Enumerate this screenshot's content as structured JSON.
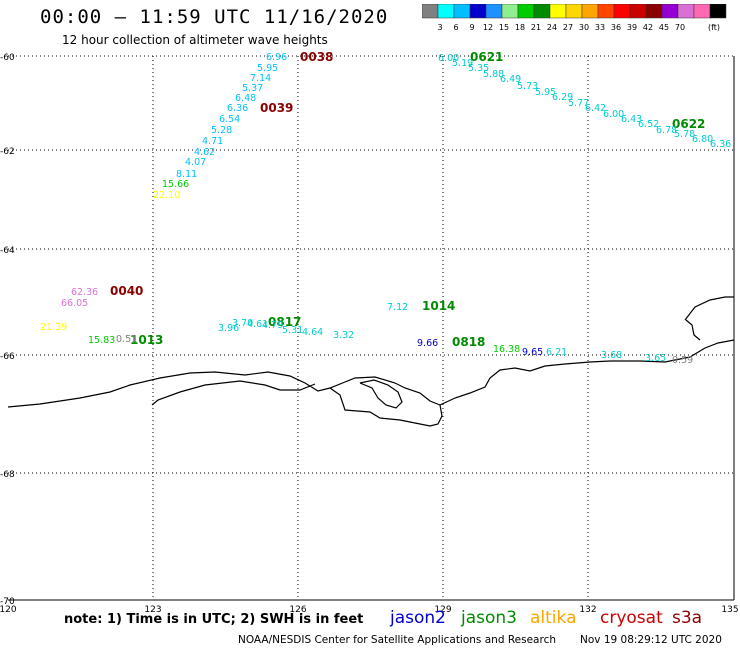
{
  "header": {
    "title": "00:00 – 11:59 UTC 11/16/2020",
    "subtitle": "12 hour collection of altimeter wave heights"
  },
  "scale": {
    "unit": "(ft)",
    "colors": [
      "#808080",
      "#00ffff",
      "#00bfff",
      "#0000cd",
      "#1e90ff",
      "#90ee90",
      "#00cd00",
      "#008b00",
      "#ffff00",
      "#ffd700",
      "#ffa500",
      "#ff4500",
      "#ff0000",
      "#cd0000",
      "#8b0000",
      "#9400d3",
      "#da70d6",
      "#ff69b4",
      "#000000"
    ],
    "labels": [
      "3",
      "6",
      "9",
      "12",
      "15",
      "18",
      "21",
      "24",
      "27",
      "30",
      "33",
      "36",
      "39",
      "42",
      "45",
      "70"
    ]
  },
  "axes": {
    "lat_labels": [
      "-60",
      "-62",
      "-64",
      "-66",
      "-68",
      "-70"
    ],
    "lon_labels": [
      "120",
      "123",
      "126",
      "129",
      "132",
      "135"
    ]
  },
  "passes": [
    {
      "label": "0038",
      "color": "#8b0000"
    },
    {
      "label": "0039",
      "color": "#8b0000"
    },
    {
      "label": "0040",
      "color": "#8b0000"
    },
    {
      "label": "0621",
      "color": "#008b00"
    },
    {
      "label": "0622",
      "color": "#008b00"
    },
    {
      "label": "0817",
      "color": "#008b00"
    },
    {
      "label": "0818",
      "color": "#008b00"
    },
    {
      "label": "1013",
      "color": "#008b00"
    },
    {
      "label": "1014",
      "color": "#008b00"
    }
  ],
  "track_values": [
    {
      "text": "6.96",
      "color": "#00bfff"
    },
    {
      "text": "5.95",
      "color": "#00bfff"
    },
    {
      "text": "7.14",
      "color": "#00bfff"
    },
    {
      "text": "5.37",
      "color": "#00bfff"
    },
    {
      "text": "6.48",
      "color": "#00bfff"
    },
    {
      "text": "6.36",
      "color": "#00bfff"
    },
    {
      "text": "6.54",
      "color": "#00bfff"
    },
    {
      "text": "5.28",
      "color": "#00bfff"
    },
    {
      "text": "4.71",
      "color": "#00bfff"
    },
    {
      "text": "4.62",
      "color": "#00bfff"
    },
    {
      "text": "4.07",
      "color": "#00bfff"
    },
    {
      "text": "8.11",
      "color": "#00bfff"
    },
    {
      "text": "15.66",
      "color": "#00cd00"
    },
    {
      "text": "22.10",
      "color": "#ffff00"
    },
    {
      "text": "6.00",
      "color": "#00cdcd"
    },
    {
      "text": "5.19",
      "color": "#00cdcd"
    },
    {
      "text": "5.35",
      "color": "#00cdcd"
    },
    {
      "text": "5.88",
      "color": "#00cdcd"
    },
    {
      "text": "6.49",
      "color": "#00cdcd"
    },
    {
      "text": "5.73",
      "color": "#00cdcd"
    },
    {
      "text": "5.95",
      "color": "#00cdcd"
    },
    {
      "text": "6.29",
      "color": "#00cdcd"
    },
    {
      "text": "5.77",
      "color": "#00cdcd"
    },
    {
      "text": "6.42",
      "color": "#00cdcd"
    },
    {
      "text": "6.00",
      "color": "#00cdcd"
    },
    {
      "text": "6.43",
      "color": "#00cdcd"
    },
    {
      "text": "6.52",
      "color": "#00cdcd"
    },
    {
      "text": "6.78",
      "color": "#00cdcd"
    },
    {
      "text": "5.78",
      "color": "#00cdcd"
    },
    {
      "text": "6.80",
      "color": "#00cdcd"
    },
    {
      "text": "6.36",
      "color": "#00cdcd"
    },
    {
      "text": "62.36",
      "color": "#da70d6"
    },
    {
      "text": "66.05",
      "color": "#da70d6"
    },
    {
      "text": "21.39",
      "color": "#ffff00"
    },
    {
      "text": "15.83",
      "color": "#00cd00"
    },
    {
      "text": "0.51",
      "color": "#808080"
    },
    {
      "text": "3.96",
      "color": "#00cdcd"
    },
    {
      "text": "3.70",
      "color": "#00cdcd"
    },
    {
      "text": "4.61",
      "color": "#00cdcd"
    },
    {
      "text": "4.79",
      "color": "#00cdcd"
    },
    {
      "text": "5.31",
      "color": "#00cdcd"
    },
    {
      "text": "4.64",
      "color": "#00cdcd"
    },
    {
      "text": "3.32",
      "color": "#00cdcd"
    },
    {
      "text": "7.12",
      "color": "#00cdcd"
    },
    {
      "text": "9.66",
      "color": "#0000cd"
    },
    {
      "text": "16.38",
      "color": "#00cd00"
    },
    {
      "text": "9.65",
      "color": "#0000cd"
    },
    {
      "text": "6.21",
      "color": "#00cdcd"
    },
    {
      "text": "3.68",
      "color": "#00cdcd"
    },
    {
      "text": "3.65",
      "color": "#00cdcd"
    },
    {
      "text": "0.59",
      "color": "#808080"
    }
  ],
  "footer": {
    "note": "note: 1) Time is in UTC; 2) SWH is in feet",
    "satellites": [
      {
        "name": "jason2",
        "color": "#0000cd"
      },
      {
        "name": "jason3",
        "color": "#008b00"
      },
      {
        "name": "altika",
        "color": "#ffa500"
      },
      {
        "name": "cryosat",
        "color": "#cd0000"
      },
      {
        "name": "s3a",
        "color": "#8b0000"
      }
    ],
    "credit": "NOAA/NESDIS Center for Satellite Applications and Research",
    "timestamp": "Nov 19 08:29:12 UTC 2020"
  }
}
